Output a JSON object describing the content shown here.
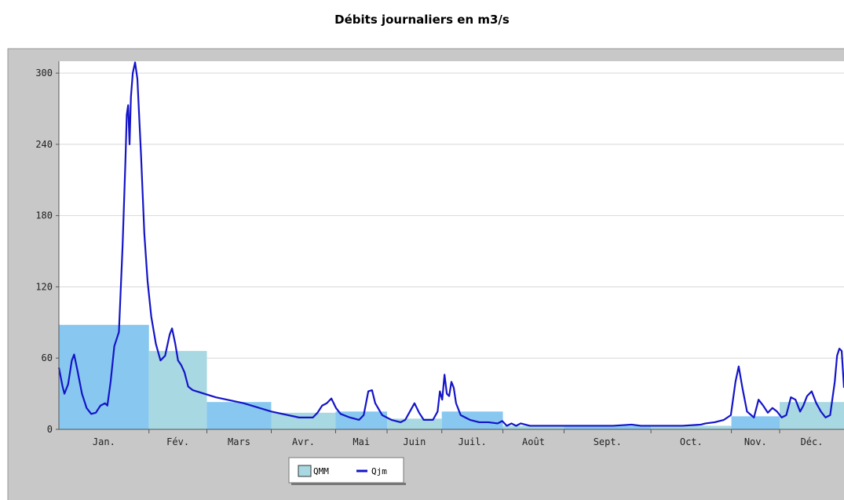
{
  "chart_data": {
    "type": "bar+line",
    "title": "Débits journaliers en m3/s",
    "xlabel": "",
    "ylabel": "",
    "ylim": [
      0,
      310
    ],
    "y_ticks": [
      0,
      60,
      120,
      180,
      240,
      300
    ],
    "grid": "horizontal",
    "legend_position": "bottom-center",
    "categories": [
      "Jan.",
      "Fév.",
      "Mars",
      "Avr.",
      "Mai",
      "Juin",
      "Juil.",
      "Août",
      "Sept.",
      "Oct.",
      "Nov.",
      "Déc."
    ],
    "series": [
      {
        "name": "QMM",
        "kind": "bar",
        "values": [
          88,
          66,
          23,
          14,
          15,
          9,
          15,
          3,
          3,
          3,
          11,
          23
        ]
      },
      {
        "name": "Qjm",
        "kind": "line",
        "points": [
          [
            0,
            52
          ],
          [
            0.08,
            36
          ],
          [
            0.12,
            30
          ],
          [
            0.2,
            38
          ],
          [
            0.28,
            58
          ],
          [
            0.33,
            63
          ],
          [
            0.4,
            50
          ],
          [
            0.5,
            30
          ],
          [
            0.6,
            18
          ],
          [
            0.7,
            13
          ],
          [
            0.8,
            14
          ],
          [
            0.9,
            20
          ],
          [
            1.0,
            22
          ],
          [
            1.05,
            20
          ],
          [
            1.12,
            40
          ],
          [
            1.2,
            70
          ],
          [
            1.3,
            82
          ],
          [
            1.38,
            155
          ],
          [
            1.44,
            225
          ],
          [
            1.47,
            265
          ],
          [
            1.5,
            273
          ],
          [
            1.53,
            240
          ],
          [
            1.56,
            280
          ],
          [
            1.6,
            300
          ],
          [
            1.65,
            309
          ],
          [
            1.7,
            295
          ],
          [
            1.78,
            230
          ],
          [
            1.85,
            165
          ],
          [
            1.92,
            125
          ],
          [
            2.0,
            95
          ],
          [
            2.1,
            72
          ],
          [
            2.2,
            58
          ],
          [
            2.3,
            62
          ],
          [
            2.4,
            80
          ],
          [
            2.45,
            85
          ],
          [
            2.52,
            72
          ],
          [
            2.58,
            58
          ],
          [
            2.65,
            54
          ],
          [
            2.72,
            48
          ],
          [
            2.8,
            36
          ],
          [
            2.9,
            33
          ],
          [
            3.4,
            27
          ],
          [
            4.0,
            22
          ],
          [
            4.6,
            15
          ],
          [
            5.2,
            10
          ],
          [
            5.5,
            10
          ],
          [
            5.6,
            14
          ],
          [
            5.7,
            20
          ],
          [
            5.8,
            22
          ],
          [
            5.9,
            26
          ],
          [
            6.0,
            18
          ],
          [
            6.1,
            13
          ],
          [
            6.3,
            10
          ],
          [
            6.5,
            8
          ],
          [
            6.6,
            12
          ],
          [
            6.7,
            32
          ],
          [
            6.78,
            33
          ],
          [
            6.85,
            22
          ],
          [
            7.0,
            12
          ],
          [
            7.2,
            8
          ],
          [
            7.4,
            6
          ],
          [
            7.5,
            8
          ],
          [
            7.6,
            15
          ],
          [
            7.7,
            22
          ],
          [
            7.8,
            14
          ],
          [
            7.9,
            8
          ],
          [
            8.1,
            8
          ],
          [
            8.2,
            15
          ],
          [
            8.25,
            32
          ],
          [
            8.3,
            25
          ],
          [
            8.35,
            46
          ],
          [
            8.4,
            30
          ],
          [
            8.45,
            28
          ],
          [
            8.5,
            40
          ],
          [
            8.55,
            35
          ],
          [
            8.6,
            22
          ],
          [
            8.7,
            12
          ],
          [
            8.9,
            8
          ],
          [
            9.1,
            6
          ],
          [
            9.3,
            6
          ],
          [
            9.5,
            5
          ],
          [
            9.6,
            7
          ],
          [
            9.7,
            3
          ],
          [
            9.8,
            5
          ],
          [
            9.9,
            3
          ],
          [
            10.0,
            5
          ],
          [
            10.2,
            3
          ],
          [
            10.4,
            3
          ],
          [
            10.8,
            3
          ],
          [
            11.2,
            3
          ],
          [
            11.6,
            3
          ],
          [
            12.0,
            3
          ],
          [
            12.4,
            4
          ],
          [
            12.6,
            3
          ],
          [
            13.0,
            3
          ],
          [
            13.5,
            3
          ],
          [
            13.9,
            4
          ],
          [
            14.0,
            5
          ],
          [
            14.2,
            6
          ],
          [
            14.4,
            8
          ],
          [
            14.55,
            12
          ],
          [
            14.65,
            40
          ],
          [
            14.72,
            53
          ],
          [
            14.8,
            35
          ],
          [
            14.9,
            15
          ],
          [
            15.05,
            10
          ],
          [
            15.15,
            25
          ],
          [
            15.25,
            20
          ],
          [
            15.35,
            14
          ],
          [
            15.45,
            18
          ],
          [
            15.55,
            15
          ],
          [
            15.65,
            10
          ],
          [
            15.75,
            12
          ],
          [
            15.85,
            27
          ],
          [
            15.95,
            25
          ],
          [
            16.05,
            15
          ],
          [
            16.12,
            20
          ],
          [
            16.2,
            28
          ],
          [
            16.3,
            32
          ],
          [
            16.4,
            22
          ],
          [
            16.5,
            15
          ],
          [
            16.6,
            10
          ],
          [
            16.7,
            12
          ],
          [
            16.8,
            40
          ],
          [
            16.85,
            62
          ],
          [
            16.9,
            68
          ],
          [
            16.95,
            66
          ],
          [
            17.0,
            35
          ]
        ]
      }
    ]
  },
  "legend": {
    "items": [
      {
        "label": "QMM",
        "color": "#a8d8e2"
      },
      {
        "label": "Qjm",
        "color": "#1414c8"
      }
    ]
  },
  "colors": {
    "plot_bg": "#ffffff",
    "frame_bg": "#c8c8c8",
    "bar_primary": "#88c8f0",
    "bar_secondary": "#a8d8e2",
    "line": "#1414c8",
    "grid": "#d8d8d8"
  }
}
